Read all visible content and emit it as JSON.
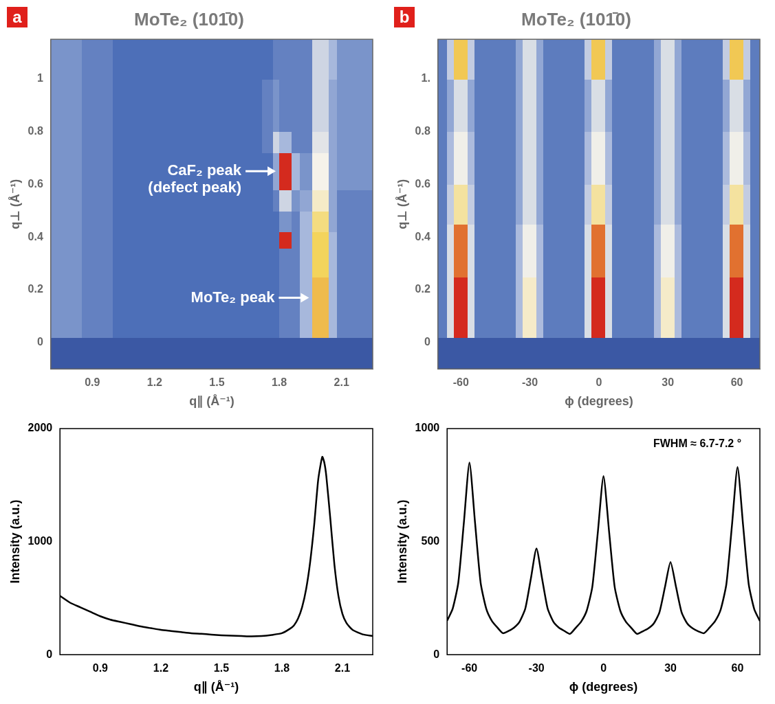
{
  "chart_data": [
    {
      "type": "heatmap",
      "panel": "a",
      "title": "MoTe₂ (101̄0)",
      "x_label": "q∥ (Å⁻¹)",
      "y_label": "q⊥ (Å⁻¹)",
      "xlim": [
        0.7,
        2.25
      ],
      "xticks": [
        0.9,
        1.2,
        1.5,
        1.8,
        2.1
      ],
      "ylim": [
        -0.1,
        1.15
      ],
      "yticks": [
        0,
        0.2,
        0.4,
        0.6,
        0.8,
        1
      ],
      "grid": false,
      "x_edges": [
        0.7,
        0.85,
        1.0,
        1.2,
        1.5,
        1.72,
        1.77,
        1.8,
        1.86,
        1.9,
        1.96,
        2.04,
        2.08,
        2.25
      ],
      "y_edges": [
        -0.1,
        0.02,
        0.25,
        0.36,
        0.42,
        0.5,
        0.58,
        0.72,
        0.8,
        1.0,
        1.15
      ],
      "cells": [
        [
          0,
          0,
          0,
          0,
          0,
          0,
          0,
          0,
          0,
          0,
          0,
          0,
          0
        ],
        [
          3,
          2.5,
          2,
          2,
          2,
          2,
          2,
          2.5,
          2.5,
          4,
          8.5,
          4,
          2.5
        ],
        [
          3,
          2.5,
          2,
          2,
          2,
          2,
          2,
          2.5,
          2.5,
          4,
          8,
          4,
          2.5
        ],
        [
          3,
          2.5,
          2,
          2,
          2,
          2,
          2,
          10,
          2.5,
          4,
          8,
          4,
          2.5
        ],
        [
          3,
          2.5,
          2,
          2,
          2,
          2,
          2,
          3,
          2.5,
          4,
          7.5,
          3.5,
          2.5
        ],
        [
          3,
          2.5,
          2,
          2,
          2,
          2,
          2.5,
          5,
          3,
          3.5,
          6.5,
          3.5,
          2.5
        ],
        [
          3,
          2.5,
          2,
          2,
          2,
          2,
          3.5,
          10,
          4,
          3,
          6,
          3.5,
          3
        ],
        [
          3,
          2.5,
          2,
          2,
          2,
          2.5,
          5,
          4,
          2.5,
          2.5,
          5.5,
          3.5,
          3
        ],
        [
          3,
          2.5,
          2,
          2,
          2,
          2.5,
          3,
          2.5,
          2.5,
          2.5,
          5,
          3.5,
          3
        ],
        [
          3,
          2.5,
          2,
          2,
          2,
          2,
          2.5,
          2.5,
          2.5,
          2.5,
          5,
          4,
          3
        ]
      ],
      "annotations": [
        {
          "text": [
            "CaF₂ peak",
            "(defect peak)"
          ],
          "x": 1.79,
          "y": 0.65
        },
        {
          "text": [
            "MoTe₂ peak"
          ],
          "x": 1.95,
          "y": 0.17
        }
      ]
    },
    {
      "type": "heatmap",
      "panel": "b",
      "title": "MoTe₂ (101̄0)",
      "x_label": "ϕ (degrees)",
      "y_label": "q⊥ (Å⁻¹)",
      "xlim": [
        -70,
        70
      ],
      "xticks": [
        -60,
        -30,
        0,
        30,
        60
      ],
      "ylim": [
        -0.1,
        1.15
      ],
      "yticks": [
        0,
        0.2,
        0.4,
        0.6,
        0.8,
        {
          "value": 1,
          "label": "1."
        }
      ],
      "grid": false,
      "x_edges": [
        -70,
        -66,
        -63,
        -57,
        -54,
        -36,
        -33,
        -27,
        -24,
        -6,
        -3,
        3,
        6,
        24,
        27,
        33,
        36,
        54,
        57,
        63,
        66,
        70
      ],
      "y_edges": [
        -0.1,
        0.02,
        0.25,
        0.45,
        0.6,
        0.8,
        1.0,
        1.15
      ],
      "cells": [
        [
          0,
          0,
          0,
          0,
          0,
          0,
          0,
          0,
          0,
          0,
          0,
          0,
          0,
          0,
          0,
          0,
          0,
          0,
          0,
          0,
          0
        ],
        [
          2,
          4.5,
          8.5,
          4.5,
          2,
          3.5,
          5.5,
          3.5,
          2,
          4.5,
          8.5,
          4.5,
          2,
          3.5,
          5.5,
          3.5,
          2,
          4.5,
          8.5,
          4.5,
          2
        ],
        [
          2,
          4.5,
          8,
          4.5,
          2,
          3.5,
          5,
          3.5,
          2,
          4.5,
          8,
          4.5,
          2,
          3.5,
          5,
          3.5,
          2,
          4.5,
          8,
          4.5,
          2
        ],
        [
          2,
          4,
          6,
          4,
          2,
          3,
          4.5,
          3,
          2,
          4,
          6,
          4,
          2,
          3,
          4.5,
          3,
          2,
          4,
          6,
          4,
          2
        ],
        [
          2,
          3.5,
          5,
          3.5,
          2,
          3,
          4.5,
          3,
          2,
          3.5,
          5,
          3.5,
          2,
          3,
          4.5,
          3,
          2,
          3.5,
          5,
          3.5,
          2
        ],
        [
          2,
          3,
          4.5,
          3,
          2,
          3,
          4.5,
          3,
          2,
          3,
          4.5,
          3,
          2,
          3,
          4.5,
          3,
          2,
          3,
          4.5,
          3,
          2
        ],
        [
          2,
          4,
          7,
          4,
          2,
          3,
          4.5,
          3,
          2,
          4,
          7,
          4,
          2,
          3,
          4.5,
          3,
          2,
          4,
          7,
          4,
          2
        ]
      ]
    },
    {
      "type": "line",
      "x_label": "q∥ (Å⁻¹)",
      "y_label": "Intensity (a.u.)",
      "xlim": [
        0.7,
        2.25
      ],
      "xticks": [
        0.9,
        1.2,
        1.5,
        1.8,
        2.1
      ],
      "ylim": [
        0,
        2000
      ],
      "yticks": [
        0,
        1000,
        2000
      ],
      "grid": false,
      "color": "#000000",
      "x": [
        0.7,
        0.75,
        0.8,
        0.85,
        0.9,
        0.95,
        1.0,
        1.05,
        1.1,
        1.15,
        1.2,
        1.25,
        1.3,
        1.35,
        1.4,
        1.45,
        1.5,
        1.55,
        1.6,
        1.65,
        1.7,
        1.75,
        1.8,
        1.84,
        1.86,
        1.88,
        1.9,
        1.92,
        1.94,
        1.96,
        1.98,
        2.0,
        2.01,
        2.02,
        2.04,
        2.06,
        2.08,
        2.1,
        2.12,
        2.15,
        2.2,
        2.25
      ],
      "values": [
        520,
        460,
        420,
        380,
        340,
        310,
        290,
        270,
        250,
        235,
        220,
        210,
        200,
        190,
        185,
        178,
        172,
        168,
        165,
        162,
        165,
        175,
        190,
        230,
        260,
        320,
        420,
        580,
        820,
        1150,
        1550,
        1750,
        1700,
        1580,
        1200,
        800,
        520,
        360,
        280,
        220,
        180,
        165
      ]
    },
    {
      "type": "line",
      "x_label": "ϕ (degrees)",
      "y_label": "Intensity (a.u.)",
      "xlim": [
        -70,
        70
      ],
      "xticks": [
        -60,
        -30,
        0,
        30,
        60
      ],
      "ylim": [
        0,
        1000
      ],
      "yticks": [
        0,
        500,
        1000
      ],
      "grid": false,
      "color": "#000000",
      "x": [
        -70,
        -67.5,
        -65,
        -62.5,
        -60,
        -57.5,
        -55,
        -52.5,
        -50,
        -47.5,
        -45,
        -42.5,
        -40,
        -37.5,
        -35,
        -32.5,
        -30,
        -27.5,
        -25,
        -22.5,
        -20,
        -17.5,
        -15,
        -12.5,
        -10,
        -7.5,
        -5,
        -2.5,
        0,
        2.5,
        5,
        7.5,
        10,
        12.5,
        15,
        17.5,
        20,
        22.5,
        25,
        27.5,
        30,
        32.5,
        35,
        37.5,
        40,
        42.5,
        45,
        47.5,
        50,
        52.5,
        55,
        57.5,
        60,
        62.5,
        65,
        67.5,
        70
      ],
      "values": [
        150,
        204,
        318,
        584,
        850,
        584,
        318,
        204,
        150,
        120,
        95,
        105,
        120,
        147,
        204,
        337,
        470,
        337,
        204,
        147,
        120,
        105,
        92,
        118,
        146,
        195,
        300,
        545,
        790,
        545,
        300,
        195,
        146,
        118,
        92,
        103,
        116,
        138,
        186,
        298,
        410,
        298,
        186,
        138,
        116,
        103,
        95,
        120,
        149,
        201,
        312,
        571,
        830,
        571,
        312,
        201,
        149
      ],
      "annotations": [
        {
          "text": [
            "FWHM ≈ 6.7-7.2 °"
          ],
          "x": 42,
          "y": 930
        }
      ]
    }
  ]
}
